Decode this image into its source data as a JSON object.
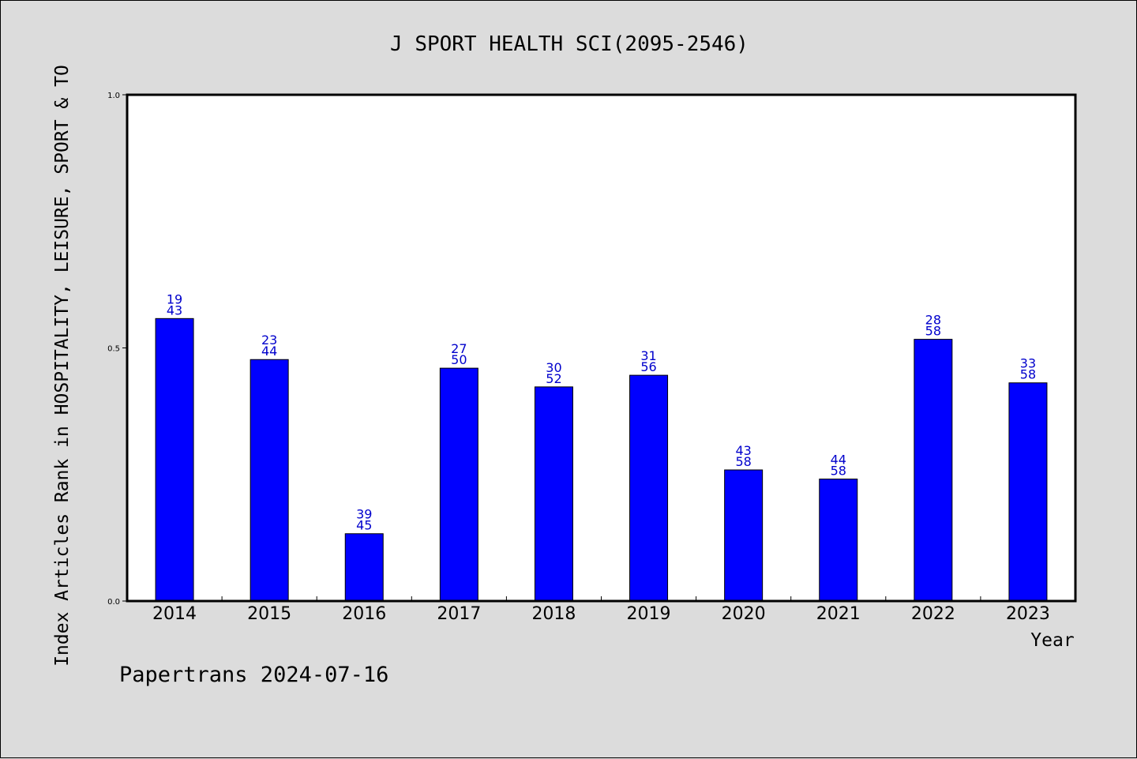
{
  "chart_data": {
    "type": "bar",
    "title": "J SPORT HEALTH SCI(2095-2546)",
    "xlabel": "Year",
    "ylabel": "Index Articles Rank in HOSPITALITY, LEISURE, SPORT & TO",
    "categories": [
      "2014",
      "2015",
      "2016",
      "2017",
      "2018",
      "2019",
      "2020",
      "2021",
      "2022",
      "2023"
    ],
    "values": [
      0.558,
      0.477,
      0.133,
      0.46,
      0.423,
      0.446,
      0.259,
      0.241,
      0.517,
      0.431
    ],
    "labels": [
      {
        "rank": "19",
        "total": "43"
      },
      {
        "rank": "23",
        "total": "44"
      },
      {
        "rank": "39",
        "total": "45"
      },
      {
        "rank": "27",
        "total": "50"
      },
      {
        "rank": "30",
        "total": "52"
      },
      {
        "rank": "31",
        "total": "56"
      },
      {
        "rank": "43",
        "total": "58"
      },
      {
        "rank": "44",
        "total": "58"
      },
      {
        "rank": "28",
        "total": "58"
      },
      {
        "rank": "33",
        "total": "58"
      }
    ],
    "yticks": [
      "0.0",
      "0.5",
      "1.0"
    ],
    "ylim": [
      0,
      1
    ],
    "bar_color": "#0000ff",
    "label_color": "#0000cc",
    "grid": false
  },
  "footer": "Papertrans 2024-07-16"
}
